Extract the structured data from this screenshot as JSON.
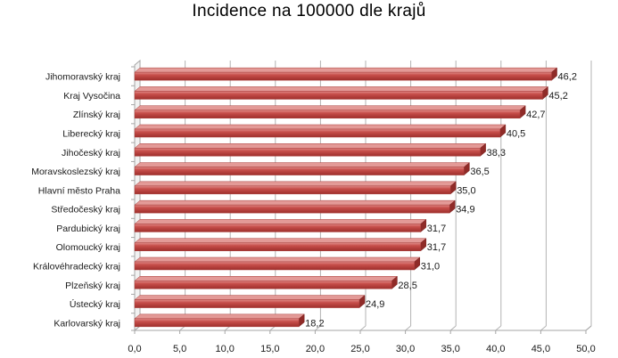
{
  "chart_data": {
    "type": "bar",
    "orientation": "horizontal",
    "title": "Incidence na 100000 dle krajů",
    "categories": [
      "Jihomoravský kraj",
      "Kraj Vysočina",
      "Zlínský kraj",
      "Liberecký kraj",
      "Jihočeský kraj",
      "Moravskoslezský kraj",
      "Hlavní město Praha",
      "Středočeský kraj",
      "Pardubický kraj",
      "Olomoucký kraj",
      "Královéhradecký kraj",
      "Plzeňský kraj",
      "Ústecký kraj",
      "Karlovarský kraj"
    ],
    "values": [
      46.2,
      45.2,
      42.7,
      40.5,
      38.3,
      36.5,
      35.0,
      34.9,
      31.7,
      31.7,
      31.0,
      28.5,
      24.9,
      18.2
    ],
    "value_labels": [
      "46,2",
      "45,2",
      "42,7",
      "40,5",
      "38,3",
      "36,5",
      "35,0",
      "34,9",
      "31,7",
      "31,7",
      "31,0",
      "28,5",
      "24,9",
      "18,2"
    ],
    "xticks": [
      "0,0",
      "5,0",
      "10,0",
      "15,0",
      "20,0",
      "25,0",
      "30,0",
      "35,0",
      "40,0",
      "45,0",
      "50,0"
    ],
    "xlim": [
      0,
      50
    ],
    "xlabel": "",
    "ylabel": "",
    "grid": true,
    "legend": "none",
    "bar_color": "#c0504d"
  }
}
